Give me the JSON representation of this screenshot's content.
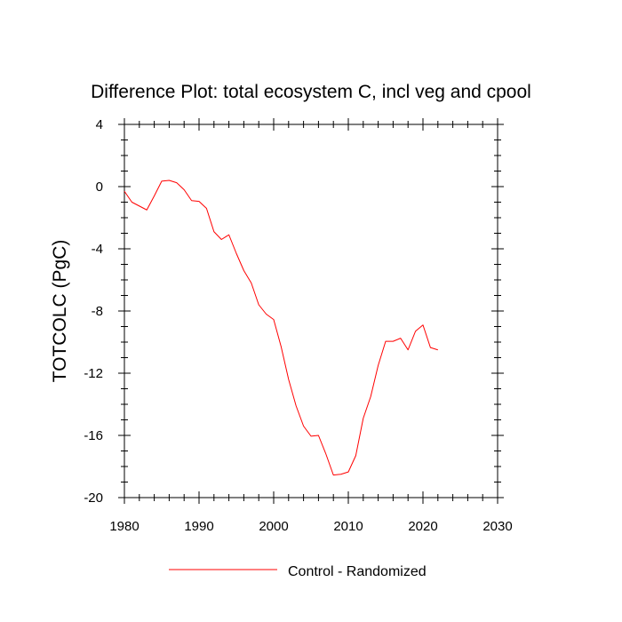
{
  "chart_data": {
    "type": "line",
    "title": "Difference Plot: total ecosystem C, incl veg and cpool",
    "xlabel": "",
    "ylabel": "TOTCOLC  (PgC)",
    "xlim": [
      1980,
      2030
    ],
    "ylim": [
      -20,
      4
    ],
    "x_ticks": [
      1980,
      1990,
      2000,
      2010,
      2020,
      2030
    ],
    "y_ticks": [
      4,
      0,
      -4,
      -8,
      -12,
      -16,
      -20
    ],
    "grid": false,
    "legend_position": "bottom-center",
    "series": [
      {
        "name": "Control - Randomized",
        "color": "#ff0000",
        "x": [
          1980,
          1981,
          1982,
          1983,
          1984,
          1985,
          1986,
          1987,
          1988,
          1989,
          1990,
          1991,
          1992,
          1993,
          1994,
          1995,
          1996,
          1997,
          1998,
          1999,
          2000,
          2001,
          2002,
          2003,
          2004,
          2005,
          2006,
          2007,
          2008,
          2009,
          2010,
          2011,
          2012,
          2013,
          2014,
          2015,
          2016,
          2017,
          2018,
          2019,
          2020,
          2021,
          2022
        ],
        "values": [
          -0.3,
          -1.0,
          -1.25,
          -1.5,
          -0.6,
          0.35,
          0.4,
          0.25,
          -0.2,
          -0.9,
          -0.95,
          -1.4,
          -2.9,
          -3.4,
          -3.1,
          -4.3,
          -5.4,
          -6.2,
          -7.6,
          -8.2,
          -8.55,
          -10.3,
          -12.4,
          -14.1,
          -15.4,
          -16.05,
          -16.0,
          -17.2,
          -18.55,
          -18.5,
          -18.35,
          -17.3,
          -14.9,
          -13.5,
          -11.5,
          -9.95,
          -9.95,
          -9.75,
          -10.5,
          -9.3,
          -8.9,
          -10.35,
          -10.5
        ]
      }
    ]
  }
}
